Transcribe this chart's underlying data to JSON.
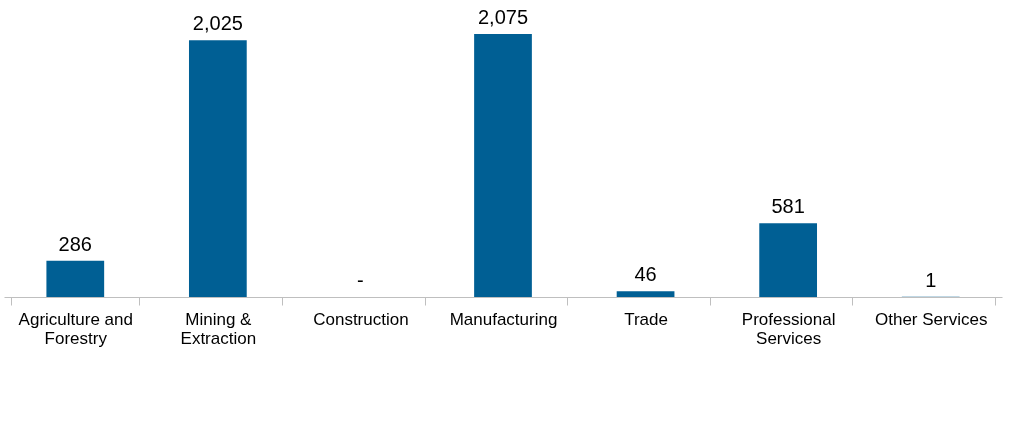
{
  "chart_data": {
    "type": "bar",
    "categories": [
      "Agriculture and Forestry",
      "Mining & Extraction",
      "Construction",
      "Manufacturing",
      "Trade",
      "Professional Services",
      "Other Services"
    ],
    "values": [
      286,
      2025,
      0,
      2075,
      46,
      581,
      1
    ],
    "value_labels": [
      "286",
      "2,025",
      "-",
      "2,075",
      "46",
      "581",
      "1"
    ],
    "color": "#005f94"
  }
}
